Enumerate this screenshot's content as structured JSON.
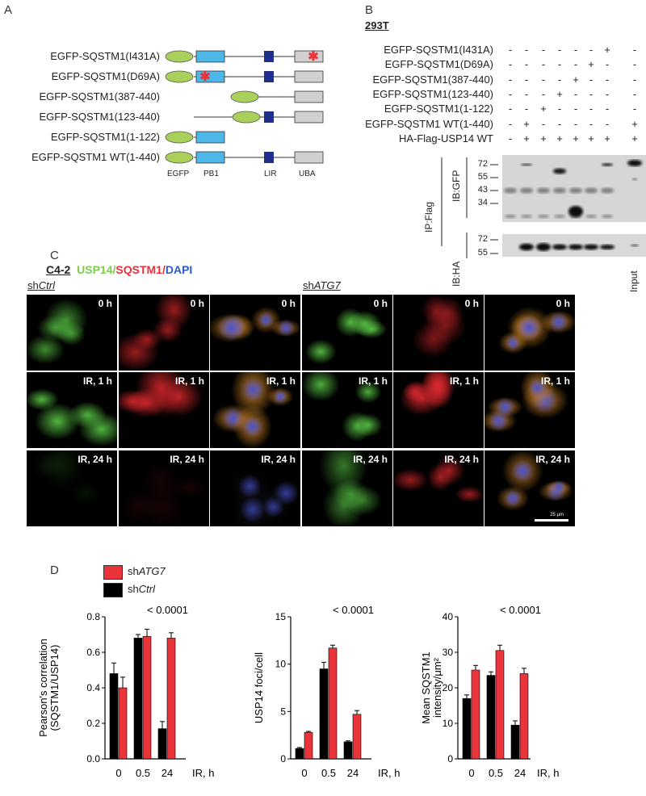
{
  "panelA": {
    "label": "A",
    "constructs": [
      {
        "name": "EGFP-SQSTM1(I431A)",
        "egfp": true,
        "pb1": true,
        "lir": true,
        "uba": true,
        "mutation": "uba"
      },
      {
        "name": "EGFP-SQSTM1(D69A)",
        "egfp": true,
        "pb1": true,
        "lir": true,
        "uba": true,
        "mutation": "pb1"
      },
      {
        "name": "EGFP-SQSTM1(387-440)",
        "egfp": true,
        "pb1": false,
        "lir": false,
        "uba": true,
        "mutation": ""
      },
      {
        "name": "EGFP-SQSTM1(123-440)",
        "egfp": true,
        "pb1": false,
        "lir": true,
        "uba": true,
        "mutation": ""
      },
      {
        "name": "EGFP-SQSTM1(1-122)",
        "egfp": true,
        "pb1": true,
        "lir": false,
        "uba": false,
        "mutation": ""
      },
      {
        "name": "EGFP-SQSTM1 WT(1-440)",
        "egfp": true,
        "pb1": true,
        "lir": true,
        "uba": true,
        "mutation": ""
      }
    ],
    "domains": [
      "EGFP",
      "PB1",
      "LIR",
      "UBA"
    ],
    "colors": {
      "egfp": "#a8d05a",
      "pb1": "#4db8e8",
      "lir": "#1f2f8a",
      "uba": "#d0d0d0",
      "mutation": "#e8343a"
    }
  },
  "panelB": {
    "label": "B",
    "cell_line": "293T",
    "rows": [
      {
        "name": "EGFP-SQSTM1(I431A)",
        "signs": [
          "-",
          "-",
          "-",
          "-",
          "-",
          "-",
          "+",
          "-"
        ]
      },
      {
        "name": "EGFP-SQSTM1(D69A)",
        "signs": [
          "-",
          "-",
          "-",
          "-",
          "-",
          "+",
          "-",
          "-"
        ]
      },
      {
        "name": "EGFP-SQSTM1(387-440)",
        "signs": [
          "-",
          "-",
          "-",
          "-",
          "+",
          "-",
          "-",
          "-"
        ]
      },
      {
        "name": "EGFP-SQSTM1(123-440)",
        "signs": [
          "-",
          "-",
          "-",
          "+",
          "-",
          "-",
          "-",
          "-"
        ]
      },
      {
        "name": "EGFP-SQSTM1(1-122)",
        "signs": [
          "-",
          "-",
          "+",
          "-",
          "-",
          "-",
          "-",
          "-"
        ]
      },
      {
        "name": "EGFP-SQSTM1 WT(1-440)",
        "signs": [
          "-",
          "+",
          "-",
          "-",
          "-",
          "-",
          "-",
          "+"
        ]
      },
      {
        "name": "HA-Flag-USP14 WT",
        "signs": [
          "-",
          "+",
          "+",
          "+",
          "+",
          "+",
          "+",
          "+"
        ]
      }
    ],
    "ip_label": "IP:Flag",
    "blots": [
      {
        "label": "IB:GFP",
        "markers": [
          "72",
          "55",
          "43",
          "34"
        ]
      },
      {
        "label": "IB:HA",
        "markers": [
          "72",
          "55"
        ]
      }
    ],
    "input_label": "Input"
  },
  "panelC": {
    "label": "C",
    "cell_line": "C4-2",
    "stain_usp14": "USP14",
    "stain_sqstm1": "SQSTM1",
    "stain_dapi": "DAPI",
    "sep": "/",
    "group_ctrl_prefix": "sh",
    "group_ctrl_gene": "Ctrl",
    "group_atg7_prefix": "sh",
    "group_atg7_gene": "ATG7",
    "row_labels": [
      "0 h",
      "IR, 1 h",
      "IR, 24 h"
    ],
    "scale_bar": "25 μm",
    "colors": {
      "usp14": "#7ccf4a",
      "sqstm1": "#e8303a",
      "dapi": "#2a5cc8"
    }
  },
  "panelD": {
    "label": "D",
    "legend": [
      {
        "prefix": "sh",
        "gene": "ATG7",
        "color": "#e8343a"
      },
      {
        "prefix": "sh",
        "gene": "Ctrl",
        "color": "#000000"
      }
    ]
  },
  "chart_data": [
    {
      "type": "bar",
      "ylabel": "Pearson's correlation\n(SQSTM1/USP14)",
      "ylabel_lines": [
        "Pearson's correlation",
        "(SQSTM1/USP14)"
      ],
      "xlabel": "IR, h",
      "categories": [
        "0",
        "0.5",
        "24"
      ],
      "annotation": "< 0.0001",
      "ylim": [
        0,
        0.8
      ],
      "yticks": [
        "0.0",
        "0.2",
        "0.4",
        "0.6",
        "0.8"
      ],
      "series": [
        {
          "name": "shCtrl",
          "values": [
            0.48,
            0.68,
            0.17
          ],
          "errors": [
            0.06,
            0.02,
            0.04
          ]
        },
        {
          "name": "shATG7",
          "values": [
            0.4,
            0.69,
            0.68
          ],
          "errors": [
            0.06,
            0.04,
            0.03
          ]
        }
      ]
    },
    {
      "type": "bar",
      "ylabel_lines": [
        "USP14 foci/cell"
      ],
      "xlabel": "IR, h",
      "categories": [
        "0",
        "0.5",
        "24"
      ],
      "annotation": "< 0.0001",
      "ylim": [
        0,
        15
      ],
      "yticks": [
        "0",
        "5",
        "10",
        "15"
      ],
      "series": [
        {
          "name": "shCtrl",
          "values": [
            1.1,
            9.5,
            1.8
          ],
          "errors": [
            0.1,
            0.7,
            0.1
          ]
        },
        {
          "name": "shATG7",
          "values": [
            2.8,
            11.7,
            4.7
          ],
          "errors": [
            0.1,
            0.3,
            0.4
          ]
        }
      ]
    },
    {
      "type": "bar",
      "ylabel_lines": [
        "Mean SQSTM1",
        "intensity/μm²"
      ],
      "xlabel": "IR, h",
      "categories": [
        "0",
        "0.5",
        "24"
      ],
      "annotation": "< 0.0001",
      "ylim": [
        0,
        40
      ],
      "yticks": [
        "0",
        "10",
        "20",
        "30",
        "40"
      ],
      "series": [
        {
          "name": "shCtrl",
          "values": [
            17,
            23.5,
            9.5
          ],
          "errors": [
            1,
            1,
            1.2
          ]
        },
        {
          "name": "shATG7",
          "values": [
            25,
            30.5,
            24
          ],
          "errors": [
            1.3,
            1.5,
            1.5
          ]
        }
      ]
    }
  ]
}
